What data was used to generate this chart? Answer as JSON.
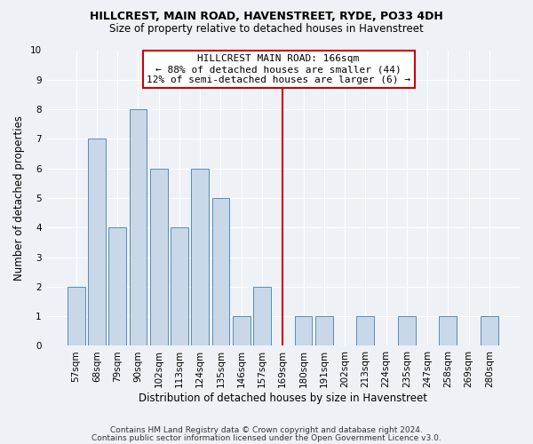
{
  "title": "HILLCREST, MAIN ROAD, HAVENSTREET, RYDE, PO33 4DH",
  "subtitle": "Size of property relative to detached houses in Havenstreet",
  "xlabel": "Distribution of detached houses by size in Havenstreet",
  "ylabel": "Number of detached properties",
  "footer1": "Contains HM Land Registry data © Crown copyright and database right 2024.",
  "footer2": "Contains public sector information licensed under the Open Government Licence v3.0.",
  "categories": [
    "57sqm",
    "68sqm",
    "79sqm",
    "90sqm",
    "102sqm",
    "113sqm",
    "124sqm",
    "135sqm",
    "146sqm",
    "157sqm",
    "169sqm",
    "180sqm",
    "191sqm",
    "202sqm",
    "213sqm",
    "224sqm",
    "235sqm",
    "247sqm",
    "258sqm",
    "269sqm",
    "280sqm"
  ],
  "values": [
    2,
    7,
    4,
    8,
    6,
    4,
    6,
    5,
    1,
    2,
    0,
    1,
    1,
    0,
    1,
    0,
    1,
    0,
    1,
    0,
    1
  ],
  "bar_color": "#c8d8e8",
  "bar_edge_color": "#5a8ab8",
  "highlight_index": 10,
  "highlight_line_color": "#cc0000",
  "annotation_box_color": "#ffffff",
  "annotation_border_color": "#cc0000",
  "annotation_title": "HILLCREST MAIN ROAD: 166sqm",
  "annotation_line1": "← 88% of detached houses are smaller (44)",
  "annotation_line2": "12% of semi-detached houses are larger (6) →",
  "ylim": [
    0,
    10
  ],
  "yticks": [
    0,
    1,
    2,
    3,
    4,
    5,
    6,
    7,
    8,
    9,
    10
  ],
  "background_color": "#eef2f7"
}
